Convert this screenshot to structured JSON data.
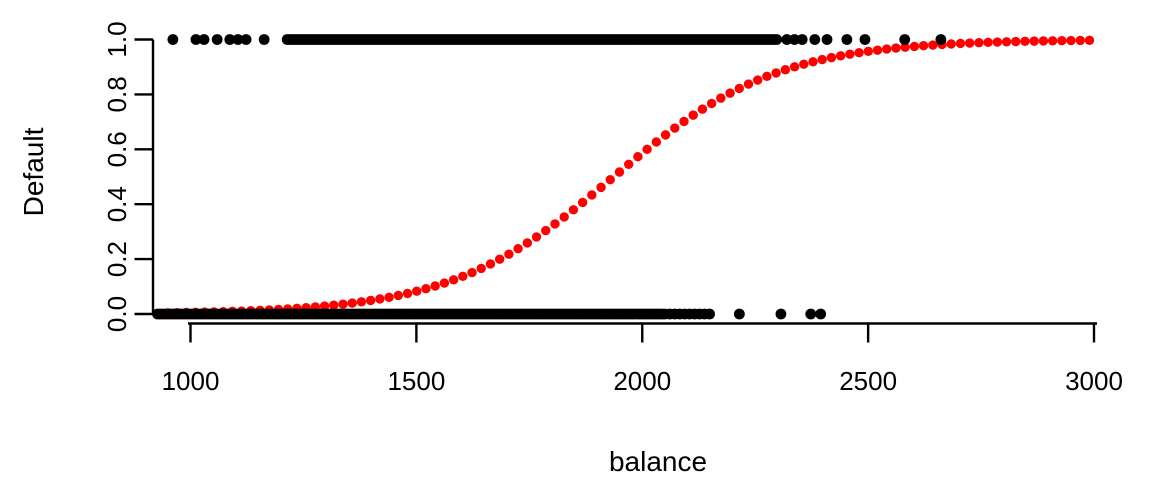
{
  "figure": {
    "kind": "R-base-scatterplot-with-logistic-fit",
    "background_color": "#ffffff",
    "xlabel": "balance",
    "ylabel": "Default"
  },
  "chart_data": {
    "type": "scatter",
    "title": "",
    "xlabel": "balance",
    "ylabel": "Default",
    "x_ticks": [
      1000,
      1500,
      2000,
      2500,
      3000
    ],
    "x_tick_labels": [
      "1000",
      "1500",
      "2000",
      "2500",
      "3000"
    ],
    "y_ticks": [
      0.0,
      0.2,
      0.4,
      0.6,
      0.8,
      1.0
    ],
    "y_tick_labels": [
      "0.0",
      "0.2",
      "0.4",
      "0.6",
      "0.8",
      "1.0"
    ],
    "xlim": [
      915,
      3015
    ],
    "ylim": [
      0,
      1
    ],
    "grid": false,
    "legend": "none",
    "axis_color": "#000000",
    "series": [
      {
        "name": "observations-default-0",
        "description": "non-defaulters plotted at Default = 0",
        "marker": "filled-circle",
        "color": "#000000",
        "marker_radius": 5.4,
        "y": 0,
        "x_dense_ranges": [
          {
            "from": 927,
            "to": 2045,
            "step": 6
          },
          {
            "from": 2050,
            "to": 2105,
            "step": 11
          },
          {
            "from": 2116,
            "to": 2158,
            "step": 11
          }
        ],
        "x_singles": [
          2215,
          2307,
          2373,
          2395
        ]
      },
      {
        "name": "observations-default-1",
        "description": "defaulters plotted at Default = 1",
        "marker": "filled-circle",
        "color": "#000000",
        "marker_radius": 5.4,
        "y": 1,
        "x_dense_ranges": [
          {
            "from": 1214,
            "to": 2300,
            "step": 5.5
          }
        ],
        "x_singles": [
          961,
          1012,
          1030,
          1059,
          1087,
          1105,
          1123,
          1163,
          2320,
          2337,
          2354,
          2382,
          2409,
          2453,
          2493,
          2581,
          2661
        ]
      },
      {
        "name": "logistic-fit-curve",
        "description": "fitted logistic regression probability curve",
        "marker": "filled-circle",
        "color": "#fe0000",
        "marker_radius": 4.7,
        "curve": "logistic",
        "logistic": {
          "x0": 1937,
          "k": 0.0055
        },
        "x_from": 950,
        "x_to": 3004,
        "x_step": 20.4
      }
    ]
  }
}
